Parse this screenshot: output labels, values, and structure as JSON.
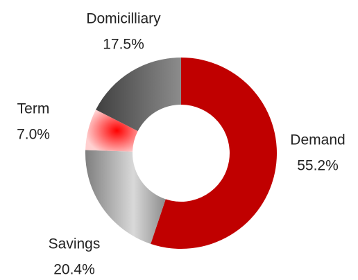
{
  "chart_data": {
    "type": "donut",
    "categories": [
      "Demand",
      "Savings",
      "Term",
      "Domicilliary"
    ],
    "values": [
      55.2,
      20.4,
      7.0,
      17.5
    ],
    "value_labels": [
      "55.2%",
      "20.4%",
      "7.0%",
      "17.5%"
    ],
    "colors": [
      "#c00000",
      "#a6a6a6",
      "#ff0000",
      "#595959"
    ]
  }
}
